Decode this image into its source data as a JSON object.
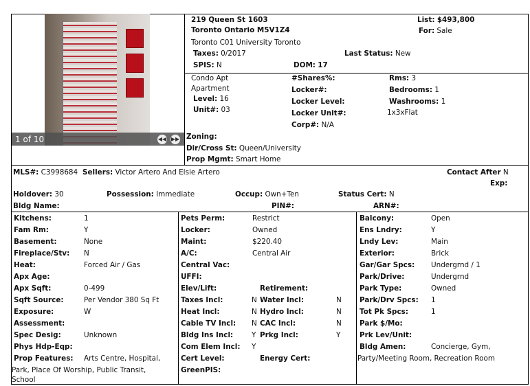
{
  "photo": {
    "counter": "1 of 10",
    "prev_icon": "rewind-icon",
    "next_icon": "fast-forward-icon"
  },
  "header": {
    "address1": "219 Queen St 1603",
    "address2": "Toronto Ontario M5V1Z4",
    "list_label": "List:",
    "list_value": "$493,800",
    "for_label": "For:",
    "for_value": "Sale",
    "area": "Toronto C01 University Toronto",
    "taxes_label": "Taxes:",
    "taxes_value": "0/2017",
    "last_status_label": "Last Status:",
    "last_status_value": "New",
    "spis_label": "SPIS:",
    "spis_value": "N",
    "dom_label": "DOM:",
    "dom_value": "17"
  },
  "details": {
    "type1": "Condo Apt",
    "type2": "Apartment",
    "level_label": "Level:",
    "level_value": "16",
    "unit_label": "Unit#:",
    "unit_value": "03",
    "shares_label": "#Shares%:",
    "locker_no_label": "Locker#:",
    "locker_level_label": "Locker Level:",
    "locker_unit_label": "Locker Unit#:",
    "corp_label": "Corp#:",
    "corp_value": "N/A",
    "rms_label": "Rms:",
    "rms_value": "3",
    "bedrooms_label": "Bedrooms:",
    "bedrooms_value": "1",
    "washrooms_label": "Washrooms:",
    "washrooms_value": "1",
    "washroom_detail": "1x3xFlat",
    "zoning_label": "Zoning:",
    "cross_label": "Dir/Cross St:",
    "cross_value": "Queen/University",
    "mgmt_label": "Prop Mgmt:",
    "mgmt_value": "Smart Home"
  },
  "listing": {
    "mls_label": "MLS#:",
    "mls_value": "C3998684",
    "sellers_label": "Sellers:",
    "sellers_value": "Victor Artero And Elsie Artero",
    "contact_label": "Contact After",
    "contact_value": "N",
    "exp_label": "Exp:",
    "holdover_label": "Holdover:",
    "holdover_value": "30",
    "possession_label": "Possession:",
    "possession_value": "Immediate",
    "occup_label": "Occup:",
    "occup_value": "Own+Ten",
    "status_cert_label": "Status Cert:",
    "status_cert_value": "N",
    "bldg_name_label": "Bldg Name:",
    "pin_label": "PIN#:",
    "arn_label": "ARN#:"
  },
  "col1": [
    {
      "label": "Kitchens:",
      "value": "1"
    },
    {
      "label": "Fam Rm:",
      "value": "Y"
    },
    {
      "label": "Basement:",
      "value": "None"
    },
    {
      "label": "Fireplace/Stv:",
      "value": "N"
    },
    {
      "label": "Heat:",
      "value": "Forced Air / Gas"
    },
    {
      "label": "Apx Age:",
      "value": ""
    },
    {
      "label": "Apx Sqft:",
      "value": "0-499"
    },
    {
      "label": "Sqft Source:",
      "value": "Per Vendor 380 Sq Ft"
    },
    {
      "label": "Exposure:",
      "value": "W"
    },
    {
      "label": "Assessment:",
      "value": ""
    },
    {
      "label": "Spec Desig:",
      "value": "Unknown"
    },
    {
      "label": "Phys Hdp-Eqp:",
      "value": ""
    },
    {
      "label": "Prop Features:",
      "value": "Arts Centre, Hospital,",
      "value2": "Park, Place Of Worship, Public Transit,",
      "value3": "School"
    }
  ],
  "col2": [
    {
      "label": "Pets Perm:",
      "value": "Restrict"
    },
    {
      "label": "Locker:",
      "value": "Owned"
    },
    {
      "label": "Maint:",
      "value": "$220.40"
    },
    {
      "label": "A/C:",
      "value": "Central Air"
    },
    {
      "label": "Central Vac:",
      "value": ""
    },
    {
      "label": "UFFI:",
      "value": ""
    },
    {
      "label": "Elev/Lift:",
      "label2": "Retirement:"
    },
    {
      "label": "Taxes Incl:",
      "value": "N",
      "label2": "Water Incl:",
      "value2": "N"
    },
    {
      "label": "Heat Incl:",
      "value": "N",
      "label2": "Hydro Incl:",
      "value2": "N"
    },
    {
      "label": "Cable TV Incl:",
      "value": "N",
      "label2": "CAC Incl:",
      "value2": "N"
    },
    {
      "label": "Bldg Ins Incl:",
      "value": "Y",
      "label2": "Prkg Incl:",
      "value2": "Y"
    },
    {
      "label": "Com Elem Incl:",
      "value": "Y"
    },
    {
      "label": "Cert Level:",
      "label2": "Energy Cert:"
    },
    {
      "label": "GreenPIS:"
    }
  ],
  "col3": [
    {
      "label": "Balcony:",
      "value": "Open"
    },
    {
      "label": "Ens Lndry:",
      "value": "Y"
    },
    {
      "label": "Lndy Lev:",
      "value": "Main"
    },
    {
      "label": "Exterior:",
      "value": "Brick"
    },
    {
      "label": "Gar/Gar Spcs:",
      "value": "Undergrnd / 1"
    },
    {
      "label": "Park/Drive:",
      "value": "Undergrnd"
    },
    {
      "label": "Park Type:",
      "value": "Owned"
    },
    {
      "label": "Park/Drv Spcs:",
      "value": "1"
    },
    {
      "label": "Tot Pk Spcs:",
      "value": "1"
    },
    {
      "label": "Park $/Mo:",
      "value": ""
    },
    {
      "label": "Prk Lev/Unit:",
      "value": ""
    },
    {
      "label": "Bldg Amen:",
      "value": "Concierge, Gym,",
      "value2": "Party/Meeting Room, Recreation Room"
    }
  ]
}
